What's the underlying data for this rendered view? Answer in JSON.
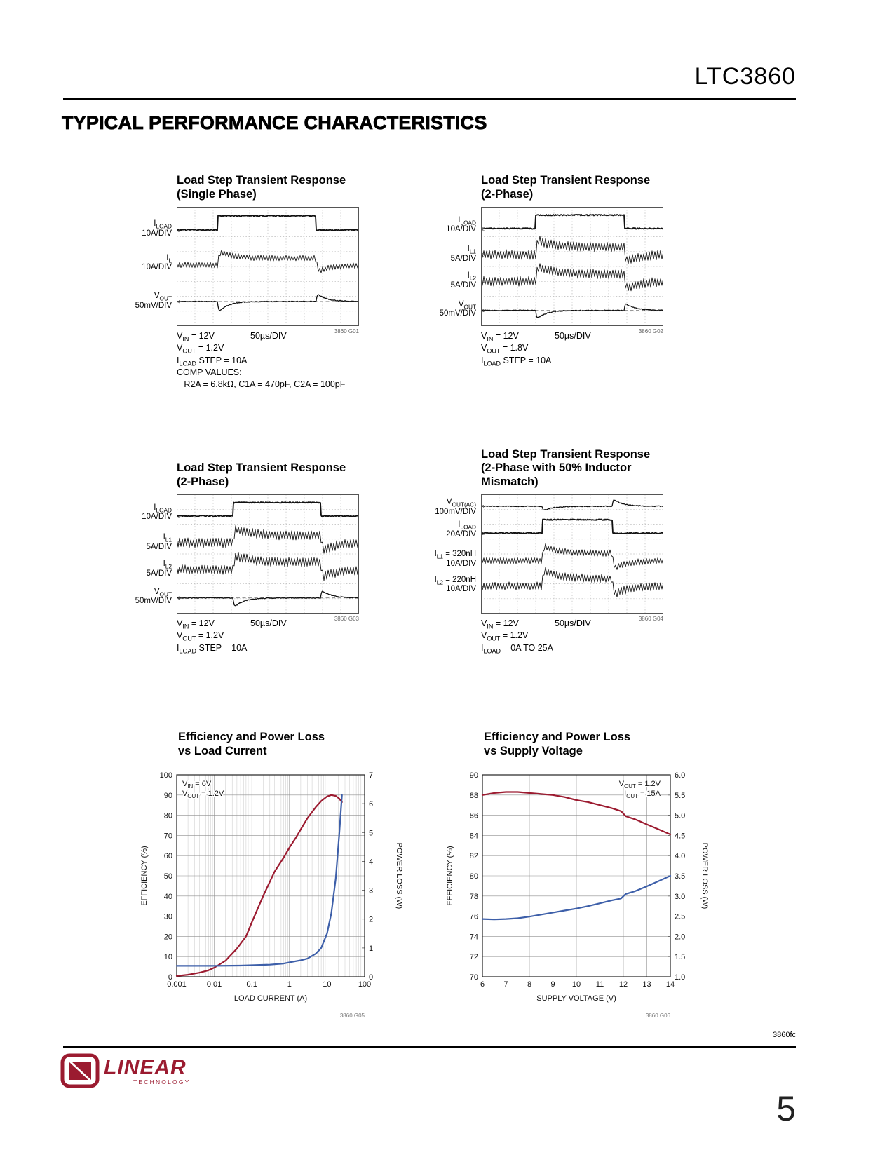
{
  "page": {
    "part_number": "LTC3860",
    "section_title": "TYPICAL PERFORMANCE CHARACTERISTICS",
    "footer_code": "3860fc",
    "page_number": "5",
    "logo_brand": "LINEAR",
    "logo_sub": "TECHNOLOGY"
  },
  "scopes": [
    {
      "id": "g01",
      "graph_id": "3860 G01",
      "title_lines": [
        "Load Step Transient Response",
        "(Single Phase)"
      ],
      "timebase": "50µs/DIV",
      "captions": [
        "V~IN~ = 12V",
        "V~OUT~ = 1.2V",
        "I~LOAD~ STEP = 10A",
        "COMP VALUES:",
        "   R2A = 6.8kΩ, C1A = 470pF, C2A = 100pF"
      ],
      "traces": [
        {
          "marker": "2",
          "type": "pulse",
          "label_lines": [
            "I~LOAD~",
            "10A/DIV"
          ],
          "labelDiv": 1.45,
          "low": 1.55,
          "high": 0.6,
          "base": 1.55,
          "t1": 0.225,
          "t2": 0.765,
          "seed": 3
        },
        {
          "marker": "1",
          "type": "ripple",
          "label_lines": [
            "I~L~",
            "10A/DIV"
          ],
          "labelDiv": 3.75,
          "base": 3.9,
          "amp": 0.2,
          "shift": 0.45,
          "os": 0.5,
          "t1": 0.225,
          "t2": 0.765,
          "seed": 11
        },
        {
          "marker": "4",
          "type": "vout",
          "label_lines": [
            "V~OUT~",
            "50mV/DIV"
          ],
          "labelDiv": 6.3,
          "base": 6.35,
          "dip": 0.8,
          "bump": 0.6,
          "ref": 6.35,
          "t1": 0.225,
          "t2": 0.765,
          "seed": 19
        }
      ]
    },
    {
      "id": "g02",
      "graph_id": "3860 G02",
      "title_lines": [
        "Load Step Transient Response",
        "(2-Phase)"
      ],
      "timebase": "50µs/DIV",
      "captions": [
        "V~IN~ = 12V",
        "V~OUT~ = 1.8V",
        "I~LOAD~ STEP = 10A"
      ],
      "traces": [
        {
          "marker": "2",
          "type": "pulse",
          "label_lines": [
            "I~LOAD~",
            "10A/DIV"
          ],
          "labelDiv": 1.2,
          "low": 1.45,
          "high": 0.55,
          "base": 1.45,
          "t1": 0.3,
          "t2": 0.785,
          "seed": 5
        },
        {
          "marker": "3",
          "type": "ripple",
          "label_lines": [
            "I~L1~",
            "5A/DIV"
          ],
          "labelDiv": 3.15,
          "base": 3.2,
          "amp": 0.33,
          "shift": 0.5,
          "os": 0.55,
          "t1": 0.3,
          "t2": 0.785,
          "seed": 23
        },
        {
          "marker": "4",
          "type": "ripple",
          "label_lines": [
            "I~L2~",
            "5A/DIV"
          ],
          "labelDiv": 4.95,
          "base": 5.0,
          "amp": 0.33,
          "shift": 0.5,
          "os": 0.55,
          "t1": 0.3,
          "t2": 0.785,
          "seed": 31
        },
        {
          "marker": "1",
          "type": "vout",
          "label_lines": [
            "V~OUT~",
            "50mV/DIV"
          ],
          "labelDiv": 6.85,
          "base": 6.95,
          "dip": 0.65,
          "bump": 0.55,
          "ref": 6.95,
          "t1": 0.3,
          "t2": 0.785,
          "seed": 41
        }
      ]
    },
    {
      "id": "g03",
      "graph_id": "3860 G03",
      "title_lines": [
        "Load Step Transient Response",
        "(2-Phase)"
      ],
      "timebase": "50µs/DIV",
      "captions": [
        "V~IN~ = 12V",
        "V~OUT~ = 1.2V",
        "I~LOAD~ STEP = 10A"
      ],
      "traces": [
        {
          "marker": "2",
          "type": "pulse",
          "label_lines": [
            "I~LOAD~",
            "10A/DIV"
          ],
          "labelDiv": 1.2,
          "low": 1.45,
          "high": 0.55,
          "base": 1.45,
          "t1": 0.31,
          "t2": 0.79,
          "seed": 43
        },
        {
          "marker": "3",
          "type": "ripple",
          "label_lines": [
            "I~L1~",
            "5A/DIV"
          ],
          "labelDiv": 3.2,
          "base": 3.25,
          "amp": 0.33,
          "shift": 0.5,
          "os": 0.55,
          "t1": 0.31,
          "t2": 0.79,
          "seed": 47
        },
        {
          "marker": "4",
          "type": "ripple",
          "label_lines": [
            "I~L2~",
            "5A/DIV"
          ],
          "labelDiv": 5.0,
          "base": 5.05,
          "amp": 0.33,
          "shift": 0.5,
          "os": 0.55,
          "t1": 0.31,
          "t2": 0.79,
          "seed": 53
        },
        {
          "marker": "1",
          "type": "vout",
          "label_lines": [
            "V~OUT~",
            "50mV/DIV"
          ],
          "labelDiv": 6.85,
          "base": 6.95,
          "dip": 0.7,
          "bump": 0.6,
          "ref": 6.95,
          "t1": 0.31,
          "t2": 0.79,
          "seed": 59
        }
      ]
    },
    {
      "id": "g04",
      "graph_id": "3860 G04",
      "title_lines": [
        "Load Step Transient Response",
        "(2-Phase with 50% Inductor",
        "Mismatch)"
      ],
      "timebase": "50µs/DIV",
      "captions": [
        "V~IN~ = 12V",
        "V~OUT~ = 1.2V",
        "I~LOAD~ = 0A TO 25A"
      ],
      "traces": [
        {
          "marker": "1",
          "type": "vout",
          "label_lines": [
            "V~OUT(AC)~",
            "100mV/DIV"
          ],
          "labelDiv": 0.85,
          "base": 0.8,
          "dip": 0.35,
          "bump": 0.55,
          "t1": 0.335,
          "t2": 0.72,
          "seed": 7
        },
        {
          "marker": "2",
          "type": "pulse",
          "label_lines": [
            "I~LOAD~",
            "20A/DIV"
          ],
          "labelDiv": 2.35,
          "low": 2.6,
          "high": 1.7,
          "base": 2.6,
          "t1": 0.335,
          "t2": 0.72,
          "seed": 13
        },
        {
          "marker": "3",
          "type": "ripple",
          "label_lines": [
            "I~L1~ = 320nH",
            "10A/DIV"
          ],
          "labelDiv": 4.35,
          "base": 4.45,
          "amp": 0.22,
          "shift": 0.5,
          "os": 0.55,
          "t1": 0.335,
          "t2": 0.72,
          "seed": 17
        },
        {
          "marker": "4",
          "type": "ripple",
          "label_lines": [
            "I~L2~ = 220nH",
            "10A/DIV"
          ],
          "labelDiv": 6.05,
          "base": 6.15,
          "amp": 0.28,
          "shift": 0.5,
          "os": 0.65,
          "t1": 0.335,
          "t2": 0.72,
          "seed": 29
        }
      ]
    }
  ],
  "chart_data": [
    {
      "type": "line",
      "title_lines": [
        "Efficiency and Power Loss",
        "vs Load Current"
      ],
      "graph_id": "3860 G05",
      "x": {
        "label": "LOAD CURRENT (A)",
        "scale": "log",
        "min": 0.001,
        "max": 100,
        "ticks": [
          0.001,
          0.01,
          0.1,
          1,
          10,
          100
        ],
        "tick_labels": [
          "0.001",
          "0.01",
          "0.1",
          "1",
          "10",
          "100"
        ]
      },
      "y_left": {
        "label": "EFFICIENCY (%)",
        "min": 0,
        "max": 100,
        "step": 10,
        "dec": 0
      },
      "y_right": {
        "label": "POWER LOSS (W)",
        "min": 0,
        "max": 7,
        "step": 1,
        "dec": 0
      },
      "annotation": [
        "V~IN~ = 6V",
        "V~OUT~ = 1.2V"
      ],
      "annotation_pos": "left",
      "grid": "on",
      "series": [
        {
          "name": "Efficiency",
          "axis": "left",
          "color": "#9c1b30",
          "x": [
            0.001,
            0.002,
            0.004,
            0.007,
            0.01,
            0.02,
            0.04,
            0.07,
            0.1,
            0.2,
            0.4,
            0.7,
            1,
            1.5,
            2,
            3,
            5,
            7,
            10,
            13,
            17,
            21,
            25
          ],
          "y": [
            0.4,
            1,
            2,
            3.2,
            4.5,
            8,
            14,
            20,
            27,
            40,
            52,
            59,
            64,
            69,
            73,
            78.5,
            84,
            87,
            89.3,
            90,
            89.6,
            88.3,
            86.5
          ]
        },
        {
          "name": "Power Loss",
          "axis": "right",
          "color": "#3d5fa9",
          "x": [
            0.001,
            0.005,
            0.01,
            0.05,
            0.1,
            0.3,
            0.7,
            1,
            2,
            3,
            5,
            7,
            10,
            13,
            17,
            21,
            25
          ],
          "y": [
            0.38,
            0.38,
            0.38,
            0.39,
            0.4,
            0.42,
            0.46,
            0.5,
            0.57,
            0.63,
            0.8,
            1.0,
            1.5,
            2.2,
            3.4,
            4.9,
            6.3
          ]
        }
      ]
    },
    {
      "type": "line",
      "title_lines": [
        "Efficiency and Power Loss",
        "vs Supply Voltage"
      ],
      "graph_id": "3860 G06",
      "x": {
        "label": "SUPPLY VOLTAGE (V)",
        "scale": "linear",
        "min": 6,
        "max": 14,
        "ticks": [
          6,
          7,
          8,
          9,
          10,
          11,
          12,
          13,
          14
        ],
        "tick_labels": [
          "6",
          "7",
          "8",
          "9",
          "10",
          "11",
          "12",
          "13",
          "14"
        ]
      },
      "y_left": {
        "label": "EFFICIENCY (%)",
        "min": 70,
        "max": 90,
        "step": 2,
        "dec": 0
      },
      "y_right": {
        "label": "POWER LOSS (W)",
        "min": 1.0,
        "max": 6.0,
        "step": 0.5,
        "dec": 1
      },
      "annotation": [
        "V~OUT~ = 1.2V",
        "I~OUT~ = 15A"
      ],
      "annotation_pos": "right",
      "grid": "on",
      "series": [
        {
          "name": "Efficiency",
          "axis": "left",
          "color": "#9c1b30",
          "x": [
            6,
            6.5,
            7,
            7.5,
            8,
            8.5,
            9,
            9.5,
            10,
            10.5,
            11,
            11.5,
            11.9,
            12.1,
            12.5,
            13,
            13.5,
            14
          ],
          "y": [
            88.0,
            88.2,
            88.3,
            88.3,
            88.2,
            88.1,
            88.0,
            87.8,
            87.5,
            87.3,
            87.0,
            86.7,
            86.4,
            85.9,
            85.6,
            85.1,
            84.6,
            84.1
          ]
        },
        {
          "name": "Power Loss",
          "axis": "right",
          "color": "#3d5fa9",
          "x": [
            6,
            6.5,
            7,
            7.5,
            8,
            8.5,
            9,
            9.5,
            10,
            10.5,
            11,
            11.5,
            11.9,
            12.1,
            12.5,
            13,
            13.5,
            14
          ],
          "y": [
            2.43,
            2.42,
            2.43,
            2.45,
            2.49,
            2.54,
            2.59,
            2.64,
            2.69,
            2.75,
            2.82,
            2.89,
            2.94,
            3.05,
            3.12,
            3.24,
            3.37,
            3.5
          ]
        }
      ]
    }
  ]
}
